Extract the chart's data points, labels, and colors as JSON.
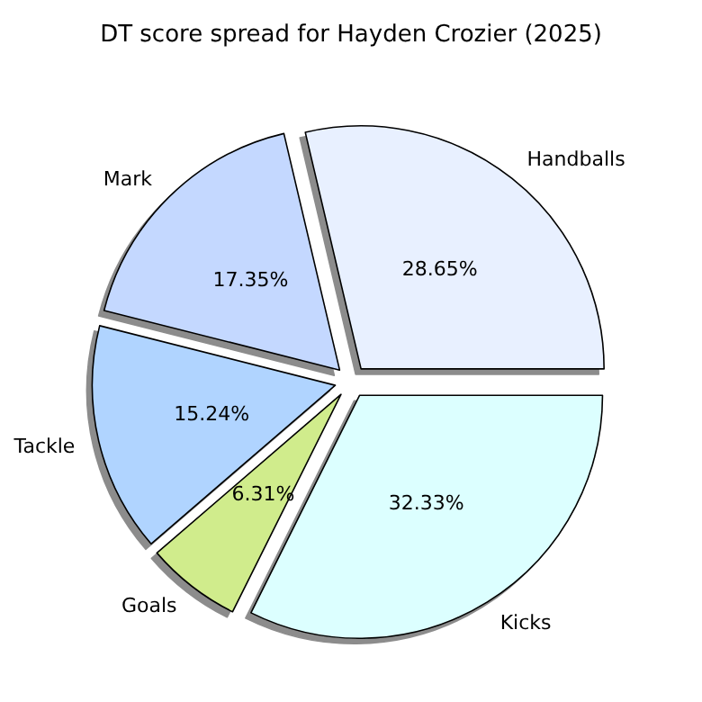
{
  "chart_data": {
    "type": "pie",
    "title": "DT score spread for Hayden Crozier (2025)",
    "categories": [
      "Handballs",
      "Mark",
      "Tackle",
      "Goals",
      "Kicks"
    ],
    "values": [
      28.65,
      17.35,
      15.24,
      6.31,
      32.33
    ],
    "colors": [
      "#e8f0ff",
      "#c4d8ff",
      "#b0d4ff",
      "#d0ec8c",
      "#dcffff"
    ],
    "value_labels": [
      "28.65%",
      "17.35%",
      "15.24%",
      "6.31%",
      "32.33%"
    ],
    "legend": false
  }
}
